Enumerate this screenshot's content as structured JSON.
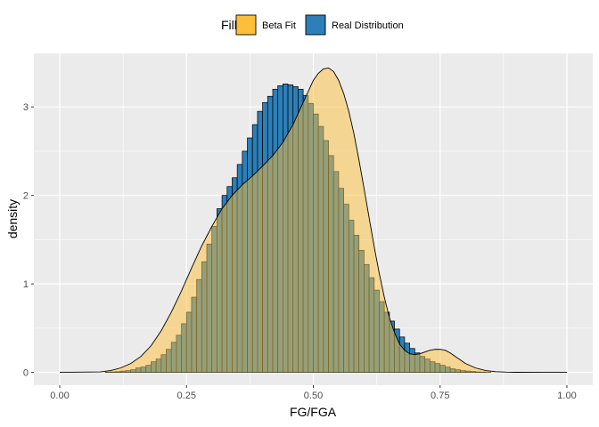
{
  "chart_data": {
    "type": "bar",
    "xlabel": "FG/FGA",
    "ylabel": "density",
    "xlim": [
      0.0,
      1.0
    ],
    "ylim": [
      0,
      3.45
    ],
    "x_ticks": [
      "0.00",
      "0.25",
      "0.50",
      "0.75",
      "1.00"
    ],
    "y_ticks": [
      "0",
      "1",
      "2",
      "3"
    ],
    "grid": true,
    "legend": {
      "title": "Fill",
      "position": "top",
      "entries": [
        {
          "label": "Beta Fit",
          "color": "#FDBF3A"
        },
        {
          "label": "Real Distribution",
          "color": "#2C7FB8"
        }
      ]
    },
    "colors": {
      "panel_background": "#EBEBEB",
      "grid_major": "#FFFFFF",
      "beta_fill": "#FDBF3A",
      "real_fill": "#2C7FB8",
      "outline": "#000000"
    },
    "series": [
      {
        "name": "Real Distribution",
        "kind": "histogram",
        "bin_width": 0.01,
        "bin_start": 0.09,
        "values": [
          0.003,
          0.005,
          0.008,
          0.015,
          0.02,
          0.03,
          0.05,
          0.06,
          0.08,
          0.12,
          0.15,
          0.2,
          0.26,
          0.34,
          0.42,
          0.55,
          0.68,
          0.85,
          1.05,
          1.25,
          1.45,
          1.65,
          1.85,
          2.0,
          2.1,
          2.2,
          2.35,
          2.5,
          2.65,
          2.8,
          2.95,
          3.05,
          3.12,
          3.2,
          3.24,
          3.26,
          3.25,
          3.23,
          3.2,
          3.13,
          3.04,
          2.92,
          2.78,
          2.62,
          2.45,
          2.27,
          2.08,
          1.9,
          1.72,
          1.55,
          1.38,
          1.22,
          1.07,
          0.93,
          0.8,
          0.68,
          0.58,
          0.49,
          0.4,
          0.33,
          0.27,
          0.22,
          0.18,
          0.15,
          0.12,
          0.1,
          0.08,
          0.06,
          0.04,
          0.03,
          0.02,
          0.015,
          0.01,
          0.005,
          0.003,
          0.001,
          0.0
        ]
      },
      {
        "name": "Beta Fit",
        "kind": "density",
        "x": [
          0.0,
          0.08,
          0.1,
          0.12,
          0.14,
          0.16,
          0.18,
          0.2,
          0.22,
          0.24,
          0.26,
          0.28,
          0.3,
          0.32,
          0.34,
          0.36,
          0.38,
          0.4,
          0.42,
          0.44,
          0.46,
          0.48,
          0.5,
          0.51,
          0.52,
          0.53,
          0.54,
          0.55,
          0.56,
          0.57,
          0.58,
          0.59,
          0.6,
          0.61,
          0.62,
          0.63,
          0.64,
          0.65,
          0.66,
          0.67,
          0.68,
          0.69,
          0.7,
          0.71,
          0.72,
          0.73,
          0.74,
          0.75,
          0.76,
          0.77,
          0.78,
          0.79,
          0.8,
          0.82,
          0.84,
          0.86,
          0.88,
          0.9,
          0.95,
          1.0
        ],
        "y": [
          0.0,
          0.005,
          0.02,
          0.05,
          0.1,
          0.18,
          0.3,
          0.47,
          0.68,
          0.92,
          1.18,
          1.43,
          1.65,
          1.85,
          2.0,
          2.12,
          2.22,
          2.33,
          2.45,
          2.6,
          2.8,
          3.05,
          3.3,
          3.38,
          3.43,
          3.44,
          3.4,
          3.3,
          3.15,
          2.95,
          2.7,
          2.4,
          2.08,
          1.75,
          1.42,
          1.12,
          0.85,
          0.62,
          0.45,
          0.32,
          0.25,
          0.21,
          0.2,
          0.21,
          0.23,
          0.25,
          0.26,
          0.26,
          0.25,
          0.22,
          0.18,
          0.14,
          0.1,
          0.05,
          0.02,
          0.008,
          0.003,
          0.001,
          0.0,
          0.0
        ]
      }
    ]
  }
}
